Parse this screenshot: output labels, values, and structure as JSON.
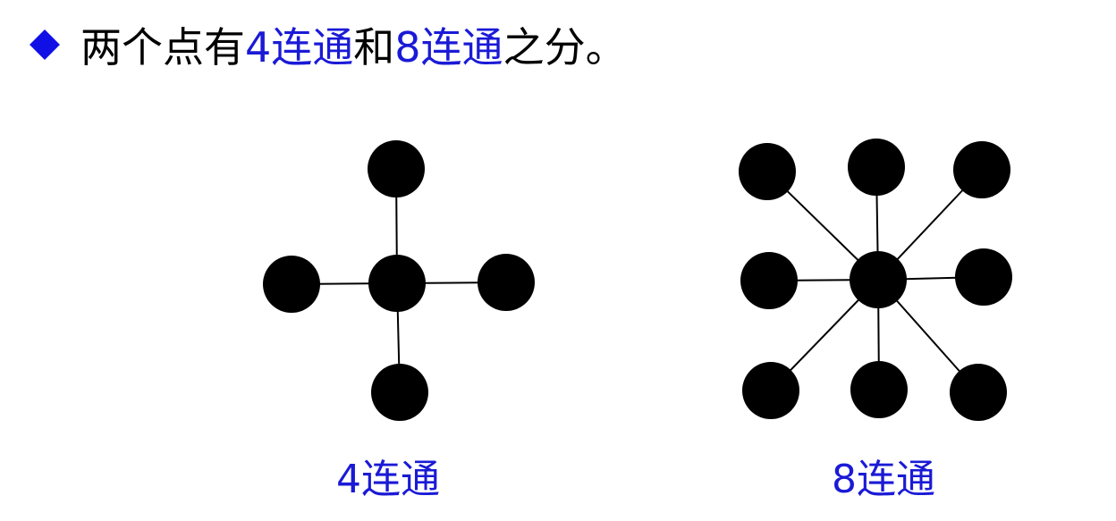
{
  "heading": {
    "bullet_icon": "blue-diamond",
    "text_before": "两个点有",
    "term_4": "4连通",
    "text_mid": "和",
    "term_8": "8连通",
    "text_after": "之分。"
  },
  "diagram_4": {
    "caption": "4连通",
    "neighbors": [
      "up",
      "left",
      "right",
      "down"
    ]
  },
  "diagram_8": {
    "caption": "8连通",
    "neighbors": [
      "up-left",
      "up",
      "up-right",
      "left",
      "right",
      "down-left",
      "down",
      "down-right"
    ]
  },
  "colors": {
    "accent": "#1a1ad6",
    "bullet": "#1010e6",
    "node": "#000000",
    "edge": "#000000"
  }
}
